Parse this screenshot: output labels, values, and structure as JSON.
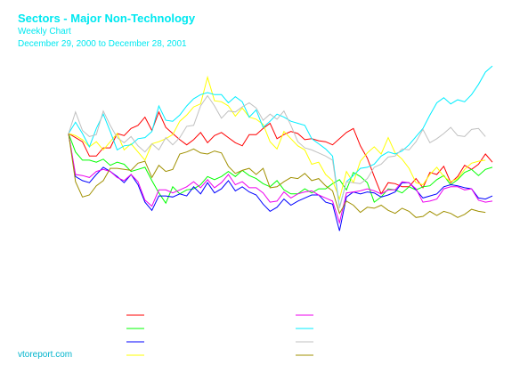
{
  "header": {
    "title": "Sectors - Major Non-Technology",
    "subtitle": "Weekly Chart",
    "date_range": "December 29, 2000 to December 28, 2001"
  },
  "footer": {
    "site": "vtoreport.com"
  },
  "chart_data": {
    "type": "line",
    "title": "Sectors - Major Non-Technology",
    "subtitle": "Weekly Chart",
    "xlabel": "",
    "ylabel": "",
    "x_start": "December 29, 2000",
    "x_end": "December 28, 2001",
    "grid": false,
    "legend_placement": "bottom",
    "legend_layout": "two columns of four, color swatches with no printed labels",
    "series": [
      {
        "color": "#ff0000",
        "values": [
          0,
          -4,
          -8,
          -22,
          -22,
          -14,
          -14,
          0,
          -2,
          5,
          8,
          16,
          3,
          21,
          6,
          0,
          -6,
          -11,
          -6,
          1,
          -9,
          -2,
          1,
          -4,
          -9,
          -12,
          -1,
          -1,
          5,
          10,
          -5,
          -1,
          2,
          0,
          -6,
          -5,
          -7,
          -8,
          -11,
          -5,
          1,
          5,
          -12,
          -24,
          -42,
          -59,
          -48,
          -49,
          -52,
          -52,
          -44,
          -53,
          -38,
          -40,
          -32,
          -48,
          -42,
          -31,
          -35,
          -30,
          -20,
          -28
        ]
      },
      {
        "color": "#00ff00",
        "values": [
          0,
          -18,
          -26,
          -26,
          -28,
          -25,
          -31,
          -28,
          -30,
          -37,
          -35,
          -33,
          -46,
          -58,
          -68,
          -52,
          -59,
          -55,
          -54,
          -50,
          -42,
          -45,
          -42,
          -37,
          -42,
          -36,
          -41,
          -44,
          -49,
          -52,
          -46,
          -55,
          -59,
          -59,
          -54,
          -58,
          -54,
          -54,
          -49,
          -45,
          -55,
          -38,
          -42,
          -48,
          -67,
          -62,
          -54,
          -55,
          -58,
          -52,
          -55,
          -52,
          -51,
          -45,
          -41,
          -50,
          -45,
          -38,
          -35,
          -41,
          -35,
          -33
        ]
      },
      {
        "color": "#0000ff",
        "values": [
          0,
          -42,
          -46,
          -48,
          -40,
          -33,
          -37,
          -42,
          -48,
          -40,
          -50,
          -67,
          -75,
          -61,
          -61,
          -62,
          -59,
          -61,
          -52,
          -59,
          -48,
          -58,
          -54,
          -46,
          -56,
          -52,
          -57,
          -60,
          -69,
          -76,
          -72,
          -64,
          -70,
          -66,
          -63,
          -60,
          -60,
          -67,
          -69,
          -95,
          -62,
          -57,
          -59,
          -57,
          -58,
          -62,
          -60,
          -57,
          -48,
          -48,
          -55,
          -63,
          -61,
          -59,
          -52,
          -50,
          -51,
          -53,
          -54,
          -63,
          -64,
          -61
        ]
      },
      {
        "color": "#ffff00",
        "values": [
          0,
          -2,
          -6,
          -13,
          -8,
          -16,
          -8,
          0,
          -16,
          -10,
          -18,
          -26,
          -10,
          -8,
          -5,
          -1,
          12,
          18,
          26,
          29,
          55,
          32,
          31,
          27,
          17,
          25,
          16,
          14,
          9,
          -8,
          -15,
          2,
          -5,
          -12,
          -16,
          -30,
          -28,
          -40,
          -46,
          -64,
          -37,
          -48,
          -27,
          -19,
          -13,
          -20,
          -4,
          -19,
          -25,
          -34,
          -48,
          -50,
          -40,
          -33,
          -42,
          -47,
          -44,
          -35,
          -29,
          -27,
          -26
        ]
      },
      {
        "color": "#ee00ee",
        "values": [
          0,
          -40,
          -41,
          -43,
          -37,
          -35,
          -37,
          -43,
          -46,
          -40,
          -47,
          -65,
          -71,
          -55,
          -55,
          -58,
          -55,
          -52,
          -47,
          -53,
          -45,
          -53,
          -48,
          -40,
          -50,
          -47,
          -53,
          -53,
          -58,
          -67,
          -66,
          -57,
          -63,
          -59,
          -57,
          -56,
          -60,
          -63,
          -66,
          -87,
          -58,
          -57,
          -56,
          -54,
          -56,
          -59,
          -55,
          -55,
          -47,
          -48,
          -54,
          -67,
          -66,
          -64,
          -54,
          -52,
          -52,
          -55,
          -54,
          -65,
          -67,
          -66
        ]
      },
      {
        "color": "#00eeff",
        "values": [
          0,
          11,
          0,
          -13,
          5,
          19,
          2,
          -16,
          -12,
          -11,
          -5,
          -4,
          2,
          27,
          13,
          12,
          18,
          27,
          34,
          38,
          40,
          38,
          38,
          30,
          36,
          31,
          16,
          23,
          6,
          12,
          19,
          16,
          12,
          10,
          8,
          -5,
          -10,
          -15,
          -22,
          -72,
          -47,
          -41,
          -34,
          -33,
          -30,
          -22,
          -18,
          -20,
          -17,
          -11,
          -3,
          5,
          18,
          30,
          35,
          29,
          33,
          31,
          38,
          48,
          60,
          66
        ]
      },
      {
        "color": "#c0c0c0",
        "values": [
          0,
          21,
          3,
          -3,
          -1,
          22,
          8,
          -4,
          -9,
          -3,
          -12,
          -18,
          -10,
          -16,
          -4,
          -11,
          -4,
          7,
          8,
          27,
          37,
          27,
          15,
          22,
          21,
          26,
          30,
          25,
          13,
          19,
          14,
          22,
          8,
          -8,
          -14,
          -16,
          -19,
          -22,
          -26,
          -73,
          -47,
          -48,
          -49,
          -44,
          -33,
          -30,
          -23,
          -22,
          -15,
          -16,
          -8,
          4,
          -9,
          -5,
          0,
          6,
          -2,
          -3,
          4,
          5,
          -3
        ]
      },
      {
        "color": "#a09000",
        "values": [
          0,
          -47,
          -62,
          -60,
          -51,
          -46,
          -34,
          -34,
          -35,
          -36,
          -29,
          -27,
          -43,
          -31,
          -37,
          -35,
          -20,
          -18,
          -15,
          -19,
          -20,
          -17,
          -19,
          -32,
          -39,
          -36,
          -34,
          -40,
          -34,
          -53,
          -52,
          -47,
          -43,
          -44,
          -39,
          -46,
          -44,
          -51,
          -56,
          -78,
          -66,
          -70,
          -77,
          -72,
          -73,
          -70,
          -75,
          -78,
          -73,
          -76,
          -82,
          -81,
          -76,
          -80,
          -76,
          -78,
          -82,
          -79,
          -74,
          -76,
          -77
        ]
      }
    ]
  }
}
